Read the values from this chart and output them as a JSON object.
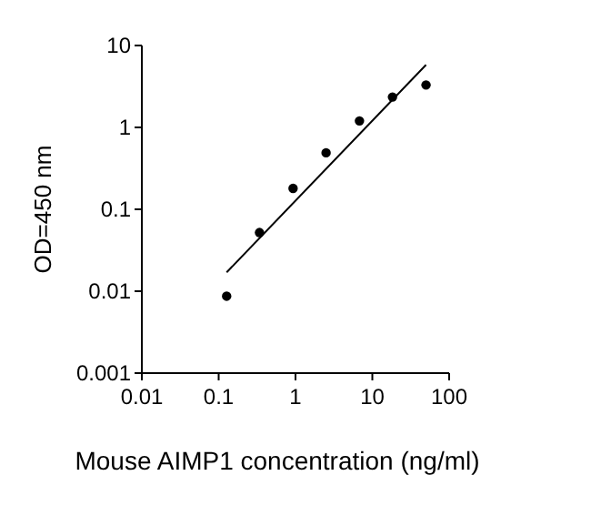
{
  "chart_data": {
    "type": "scatter",
    "xlabel": "Mouse AIMP1 concentration (ng/ml)",
    "ylabel": "OD=450 nm",
    "log": "xy",
    "grid": false,
    "xlim": [
      0.01,
      100
    ],
    "xticks": [
      0.01,
      0.1,
      1,
      10,
      100
    ],
    "ylim": [
      0.001,
      10
    ],
    "yticks": [
      0.001,
      0.01,
      0.1,
      1,
      10
    ],
    "series": [
      {
        "color": "#000000",
        "marker": "circle",
        "x": [
          0.127,
          0.34,
          0.93,
          2.5,
          6.8,
          18.3,
          50
        ],
        "values": [
          0.0087,
          0.052,
          0.18,
          0.49,
          1.2,
          2.35,
          3.3
        ]
      },
      {
        "type": "line",
        "marker": "none",
        "color": "#000000",
        "x": [
          0.127,
          50
        ],
        "values": [
          0.017,
          5.8
        ]
      }
    ]
  }
}
